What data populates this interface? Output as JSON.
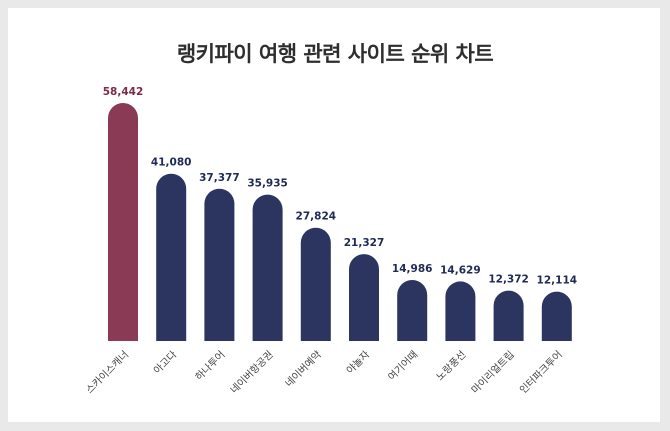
{
  "chart_data": {
    "type": "bar",
    "title": "랭키파이 여행 관련 사이트 순위 차트",
    "categories": [
      "스카이스캐너",
      "아고다",
      "하나투어",
      "네이버항공권",
      "네이버예약",
      "야놀자",
      "여기어때",
      "노랑풍선",
      "마이리얼트립",
      "인터파크투어"
    ],
    "values": [
      58442,
      41080,
      37377,
      35935,
      27824,
      21327,
      14986,
      14629,
      12372,
      12114
    ],
    "value_labels": [
      "58,442",
      "41,080",
      "37,377",
      "35,935",
      "27,824",
      "21,327",
      "14,986",
      "14,629",
      "12,372",
      "12,114"
    ],
    "ylim": [
      0,
      58442
    ],
    "grid": false,
    "colors": {
      "highlight": "#8b3a55",
      "bar": "#2b3560",
      "highlight_label": "#7d2a45",
      "bar_label": "#1f2a55"
    }
  }
}
